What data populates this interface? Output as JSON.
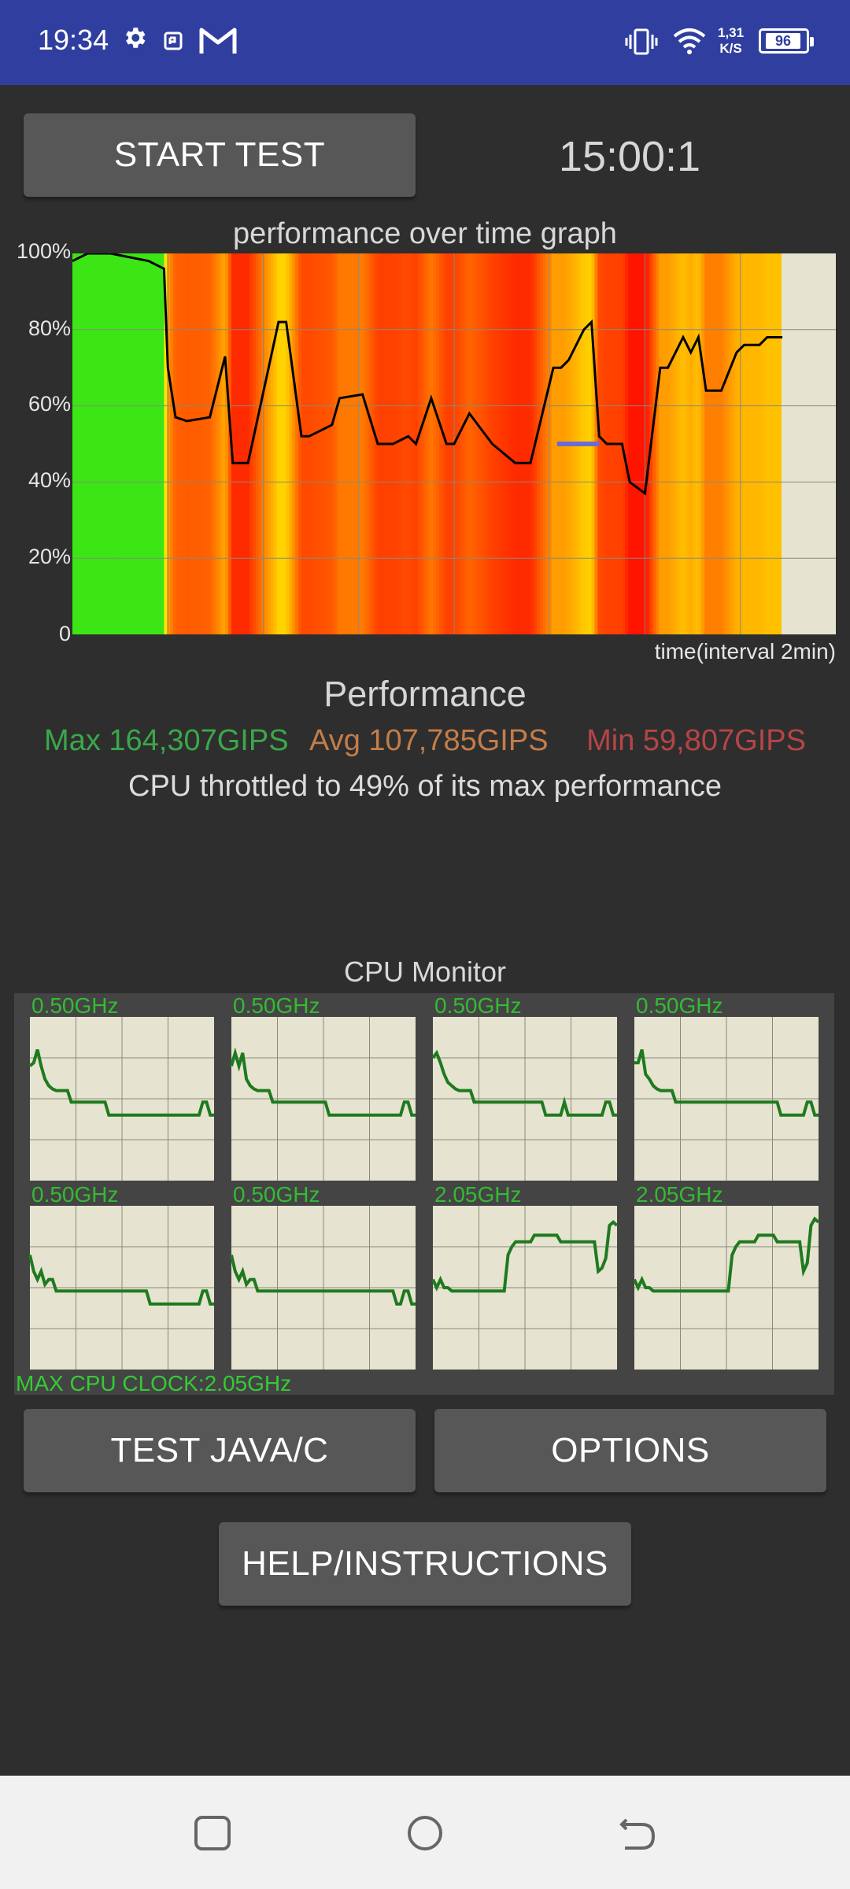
{
  "status_bar": {
    "time": "19:34",
    "net_speed_value": "1,31",
    "net_speed_unit": "K/S",
    "battery": "96",
    "icons": [
      "gear-icon",
      "nfc-icon",
      "gmail-icon",
      "vibrate-icon",
      "wifi-icon"
    ]
  },
  "controls": {
    "start_test": "START TEST",
    "timer": "15:00:1",
    "test_java": "TEST JAVA/C",
    "options": "OPTIONS",
    "help": "HELP/INSTRUCTIONS"
  },
  "graph": {
    "title": "performance over time graph",
    "y_labels": [
      "100%",
      "80%",
      "60%",
      "40%",
      "20%",
      "0"
    ],
    "x_label": "time(interval 2min)"
  },
  "performance": {
    "heading": "Performance",
    "max": "Max 164,307GIPS",
    "avg": "Avg 107,785GIPS",
    "min": "Min 59,807GIPS",
    "throttle_text": "CPU throttled to 49% of its max performance"
  },
  "cpu_monitor": {
    "title": "CPU Monitor",
    "cores": [
      {
        "freq": "0.50GHz"
      },
      {
        "freq": "0.50GHz"
      },
      {
        "freq": "0.50GHz"
      },
      {
        "freq": "0.50GHz"
      },
      {
        "freq": "0.50GHz"
      },
      {
        "freq": "0.50GHz"
      },
      {
        "freq": "2.05GHz"
      },
      {
        "freq": "2.05GHz"
      }
    ],
    "max_clock": "MAX CPU CLOCK:2.05GHz"
  },
  "chart_data": {
    "type": "area",
    "title": "performance over time graph",
    "xlabel": "time(interval 2min)",
    "ylabel": "",
    "ylim": [
      0,
      100
    ],
    "y_ticks": [
      "0",
      "20%",
      "40%",
      "60%",
      "80%",
      "100%"
    ],
    "x": [
      0,
      0.02,
      0.05,
      0.1,
      0.12,
      0.125,
      0.135,
      0.15,
      0.18,
      0.2,
      0.21,
      0.23,
      0.27,
      0.28,
      0.3,
      0.31,
      0.34,
      0.35,
      0.38,
      0.4,
      0.42,
      0.44,
      0.45,
      0.47,
      0.49,
      0.5,
      0.52,
      0.55,
      0.58,
      0.6,
      0.63,
      0.64,
      0.65,
      0.67,
      0.68,
      0.69,
      0.7,
      0.72,
      0.73,
      0.75,
      0.77,
      0.78,
      0.8,
      0.81,
      0.82,
      0.83,
      0.85,
      0.87,
      0.88,
      0.9,
      0.91,
      0.93
    ],
    "values": [
      98,
      100,
      100,
      98,
      96,
      70,
      57,
      56,
      57,
      73,
      45,
      45,
      82,
      82,
      52,
      52,
      55,
      62,
      63,
      50,
      50,
      52,
      50,
      62,
      50,
      50,
      58,
      50,
      45,
      45,
      70,
      70,
      72,
      80,
      82,
      52,
      50,
      50,
      40,
      37,
      70,
      70,
      78,
      74,
      78,
      64,
      64,
      74,
      76,
      76,
      78,
      78
    ],
    "throttle_marker": 50
  },
  "cpu_chart_data": [
    {
      "type": "line",
      "name": "core1",
      "values": [
        70,
        72,
        80,
        70,
        62,
        58,
        56,
        55,
        55,
        55,
        55,
        48,
        48,
        48,
        48,
        48,
        48,
        48,
        48,
        48,
        48,
        40,
        40,
        40,
        40,
        40,
        40,
        40,
        40,
        40,
        40,
        40,
        40,
        40,
        40,
        40,
        40,
        40,
        40,
        40,
        40,
        40,
        40,
        40,
        40,
        40,
        48,
        48,
        40,
        40
      ]
    },
    {
      "type": "line",
      "name": "core2",
      "values": [
        70,
        78,
        70,
        78,
        62,
        58,
        56,
        55,
        55,
        55,
        55,
        48,
        48,
        48,
        48,
        48,
        48,
        48,
        48,
        48,
        48,
        48,
        48,
        48,
        48,
        48,
        40,
        40,
        40,
        40,
        40,
        40,
        40,
        40,
        40,
        40,
        40,
        40,
        40,
        40,
        40,
        40,
        40,
        40,
        40,
        40,
        48,
        48,
        40,
        40
      ]
    },
    {
      "type": "line",
      "name": "core3",
      "values": [
        75,
        78,
        72,
        65,
        60,
        58,
        56,
        55,
        55,
        55,
        55,
        48,
        48,
        48,
        48,
        48,
        48,
        48,
        48,
        48,
        48,
        48,
        48,
        48,
        48,
        48,
        48,
        48,
        48,
        48,
        40,
        40,
        40,
        40,
        40,
        48,
        40,
        40,
        40,
        40,
        40,
        40,
        40,
        40,
        40,
        40,
        48,
        48,
        40,
        40
      ]
    },
    {
      "type": "line",
      "name": "core4",
      "values": [
        72,
        72,
        80,
        65,
        62,
        58,
        56,
        55,
        55,
        55,
        55,
        48,
        48,
        48,
        48,
        48,
        48,
        48,
        48,
        48,
        48,
        48,
        48,
        48,
        48,
        48,
        48,
        48,
        48,
        48,
        48,
        48,
        48,
        48,
        48,
        48,
        48,
        48,
        48,
        40,
        40,
        40,
        40,
        40,
        40,
        40,
        48,
        48,
        40,
        40
      ]
    },
    {
      "type": "line",
      "name": "core5",
      "values": [
        70,
        60,
        55,
        60,
        52,
        55,
        55,
        48,
        48,
        48,
        48,
        48,
        48,
        48,
        48,
        48,
        48,
        48,
        48,
        48,
        48,
        48,
        48,
        48,
        48,
        48,
        48,
        48,
        48,
        48,
        48,
        48,
        40,
        40,
        40,
        40,
        40,
        40,
        40,
        40,
        40,
        40,
        40,
        40,
        40,
        40,
        48,
        48,
        40,
        40
      ]
    },
    {
      "type": "line",
      "name": "core6",
      "values": [
        70,
        60,
        55,
        60,
        52,
        55,
        55,
        48,
        48,
        48,
        48,
        48,
        48,
        48,
        48,
        48,
        48,
        48,
        48,
        48,
        48,
        48,
        48,
        48,
        48,
        48,
        48,
        48,
        48,
        48,
        48,
        48,
        48,
        48,
        48,
        48,
        48,
        48,
        48,
        48,
        48,
        48,
        48,
        48,
        40,
        40,
        48,
        48,
        40,
        40
      ]
    },
    {
      "type": "line",
      "name": "core7",
      "values": [
        55,
        50,
        55,
        50,
        50,
        48,
        48,
        48,
        48,
        48,
        48,
        48,
        48,
        48,
        48,
        48,
        48,
        48,
        48,
        48,
        70,
        75,
        78,
        78,
        78,
        78,
        78,
        82,
        82,
        82,
        82,
        82,
        82,
        82,
        78,
        78,
        78,
        78,
        78,
        78,
        78,
        78,
        78,
        78,
        60,
        62,
        68,
        88,
        90,
        88
      ]
    },
    {
      "type": "line",
      "name": "core8",
      "values": [
        55,
        50,
        55,
        50,
        50,
        48,
        48,
        48,
        48,
        48,
        48,
        48,
        48,
        48,
        48,
        48,
        48,
        48,
        48,
        48,
        48,
        48,
        48,
        48,
        48,
        48,
        70,
        75,
        78,
        78,
        78,
        78,
        78,
        82,
        82,
        82,
        82,
        82,
        78,
        78,
        78,
        78,
        78,
        78,
        78,
        60,
        65,
        88,
        92,
        90
      ]
    }
  ]
}
